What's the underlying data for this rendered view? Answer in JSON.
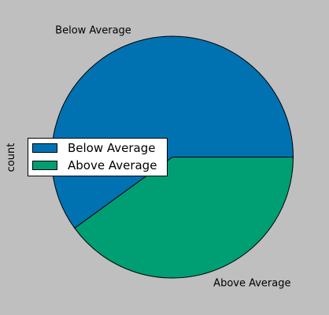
{
  "chart_data": {
    "type": "pie",
    "ylabel": "count",
    "slices": [
      {
        "label": "Below Average",
        "value": 0.6,
        "color": "#0072b2"
      },
      {
        "label": "Above Average",
        "value": 0.4,
        "color": "#009e73"
      }
    ],
    "start_angle": 0,
    "direction": "counterclockwise",
    "legend": {
      "placement": "center-left",
      "entries": [
        "Below Average",
        "Above Average"
      ]
    }
  },
  "colors": {
    "background": "#bfbfbf",
    "edge": "#000000"
  }
}
